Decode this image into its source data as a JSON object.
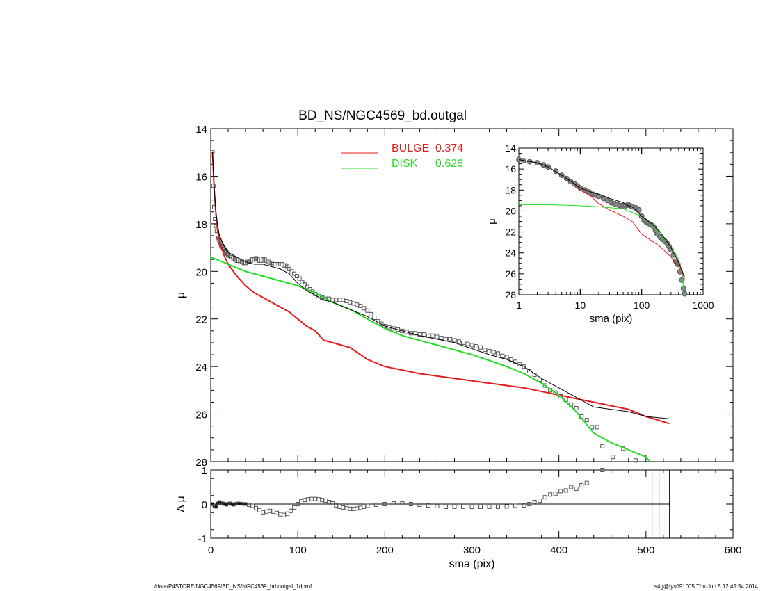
{
  "title": "BD_NS/NGC4569_bd.outgal",
  "footer_left": "/data/P4STORE/NGC4569/BD_NS/NGC4569_bd.outgal_1dprof",
  "footer_right": "s4g@fys091005  Thu Jun  5 12:45:54 2014",
  "colors": {
    "bulge": "#e41a1c",
    "disk": "#22dd22",
    "total": "#000000",
    "data": "#555555"
  },
  "chart_data": [
    {
      "name": "main",
      "type": "line",
      "xlabel": "",
      "ylabel": "μ",
      "xlim": [
        0,
        600
      ],
      "ylim": [
        28,
        14
      ],
      "xticks": [
        0,
        100,
        200,
        300,
        400,
        500,
        600
      ],
      "yticks": [
        14,
        16,
        18,
        20,
        22,
        24,
        26,
        28
      ],
      "legend": [
        {
          "label": "BULGE",
          "value": "0.374",
          "color": "#e41a1c"
        },
        {
          "label": "DISK",
          "value": "0.626",
          "color": "#22dd22"
        }
      ],
      "series": [
        {
          "name": "BULGE",
          "color": "#e41a1c",
          "x": [
            2,
            4,
            6,
            8,
            10,
            15,
            20,
            30,
            40,
            50,
            60,
            70,
            80,
            90,
            100,
            110,
            120,
            130,
            140,
            160,
            180,
            200,
            240,
            280,
            320,
            360,
            400,
            440,
            480,
            500,
            527
          ],
          "y": [
            15.0,
            16.6,
            17.6,
            18.3,
            18.7,
            19.3,
            19.7,
            20.2,
            20.6,
            20.9,
            21.1,
            21.3,
            21.5,
            21.7,
            22.0,
            22.3,
            22.5,
            22.9,
            23.0,
            23.2,
            23.7,
            24.0,
            24.3,
            24.5,
            24.7,
            24.9,
            25.2,
            25.5,
            25.8,
            26.1,
            26.4
          ]
        },
        {
          "name": "DISK",
          "color": "#22dd22",
          "x": [
            0,
            20,
            40,
            60,
            80,
            100,
            120,
            140,
            160,
            180,
            200,
            220,
            260,
            300,
            340,
            360,
            380,
            400,
            420,
            440,
            460,
            480,
            500,
            505
          ],
          "y": [
            19.4,
            19.7,
            20.0,
            20.2,
            20.4,
            20.6,
            20.9,
            21.3,
            21.6,
            22.0,
            22.4,
            22.7,
            23.1,
            23.5,
            24.0,
            24.3,
            24.7,
            25.2,
            25.9,
            26.8,
            27.2,
            27.5,
            27.8,
            28.0
          ]
        },
        {
          "name": "TOTAL",
          "color": "#000000",
          "x": [
            2,
            4,
            6,
            8,
            10,
            15,
            20,
            30,
            40,
            50,
            60,
            70,
            80,
            90,
            100,
            110,
            120,
            130,
            140,
            160,
            180,
            200,
            240,
            280,
            320,
            340,
            360,
            380,
            400,
            420,
            440,
            460,
            480,
            500,
            527
          ],
          "y": [
            15.0,
            16.5,
            17.5,
            18.1,
            18.5,
            18.9,
            19.2,
            19.4,
            19.6,
            19.7,
            19.7,
            19.8,
            19.9,
            20.1,
            20.5,
            20.8,
            21.0,
            21.2,
            21.3,
            21.6,
            21.9,
            22.3,
            22.7,
            23.0,
            23.5,
            23.7,
            24.0,
            24.5,
            24.9,
            25.3,
            25.7,
            25.8,
            25.9,
            26.1,
            26.2
          ]
        }
      ],
      "data_points": {
        "name": "data",
        "x": [
          2,
          3,
          4,
          5,
          6,
          7,
          8,
          9,
          10,
          11,
          12,
          13,
          14,
          15,
          16,
          17,
          18,
          19,
          20,
          22,
          24,
          26,
          28,
          30,
          32,
          34,
          36,
          38,
          40,
          42,
          44,
          46,
          48,
          50,
          52,
          54,
          56,
          58,
          60,
          62,
          64,
          66,
          68,
          70,
          72,
          74,
          76,
          78,
          80,
          82,
          84,
          86,
          88,
          90,
          93,
          96,
          99,
          102,
          105,
          108,
          111,
          114,
          117,
          120,
          124,
          128,
          132,
          136,
          140,
          144,
          148,
          152,
          156,
          160,
          164,
          168,
          172,
          176,
          180,
          184,
          188,
          192,
          196,
          200,
          205,
          210,
          215,
          220,
          225,
          230,
          235,
          240,
          245,
          250,
          255,
          260,
          265,
          270,
          275,
          280,
          285,
          290,
          295,
          300,
          305,
          310,
          315,
          320,
          325,
          330,
          335,
          340,
          345,
          350,
          355,
          360,
          366,
          372,
          378,
          384,
          390,
          396,
          402,
          408,
          414,
          420,
          426,
          432,
          438,
          444,
          450,
          462,
          474,
          488
        ],
        "y": [
          15.0,
          16.4,
          17.3,
          17.8,
          18.1,
          18.3,
          18.5,
          18.6,
          18.7,
          18.8,
          18.9,
          18.95,
          19.0,
          19.05,
          19.1,
          19.15,
          19.2,
          19.25,
          19.3,
          19.35,
          19.4,
          19.45,
          19.5,
          19.55,
          19.55,
          19.6,
          19.6,
          19.65,
          19.65,
          19.6,
          19.6,
          19.55,
          19.5,
          19.5,
          19.45,
          19.5,
          19.55,
          19.55,
          19.5,
          19.5,
          19.55,
          19.6,
          19.65,
          19.65,
          19.7,
          19.7,
          19.7,
          19.7,
          19.7,
          19.7,
          19.75,
          19.75,
          19.8,
          19.9,
          20.0,
          20.1,
          20.2,
          20.3,
          20.45,
          20.55,
          20.65,
          20.75,
          20.85,
          20.95,
          21.05,
          21.1,
          21.15,
          21.15,
          21.2,
          21.2,
          21.2,
          21.2,
          21.25,
          21.3,
          21.35,
          21.4,
          21.45,
          21.55,
          21.65,
          21.8,
          21.95,
          22.1,
          22.2,
          22.3,
          22.35,
          22.4,
          22.45,
          22.5,
          22.55,
          22.6,
          22.6,
          22.65,
          22.65,
          22.7,
          22.7,
          22.75,
          22.8,
          22.85,
          22.85,
          22.9,
          22.95,
          23.0,
          23.05,
          23.1,
          23.15,
          23.2,
          23.3,
          23.35,
          23.4,
          23.45,
          23.55,
          23.6,
          23.7,
          23.8,
          23.9,
          24.0,
          24.2,
          24.35,
          24.55,
          24.8,
          25.0,
          25.1,
          25.25,
          25.4,
          25.6,
          25.75,
          26.1,
          26.25,
          26.55,
          26.55,
          27.35,
          27.8,
          27.45,
          27.95
        ]
      }
    },
    {
      "name": "residuals",
      "type": "scatter",
      "xlabel": "sma (pix)",
      "ylabel": "Δ μ",
      "xlim": [
        0,
        600
      ],
      "ylim": [
        -1,
        1
      ],
      "xticks": [
        0,
        100,
        200,
        300,
        400,
        500,
        600
      ],
      "yticks": [
        -1,
        0,
        1
      ],
      "vlines": [
        507,
        515,
        527
      ],
      "x": [
        2,
        4,
        6,
        8,
        10,
        12,
        14,
        16,
        18,
        20,
        22,
        24,
        26,
        28,
        30,
        32,
        34,
        36,
        38,
        40,
        44,
        48,
        52,
        56,
        60,
        64,
        68,
        72,
        76,
        80,
        84,
        88,
        92,
        96,
        100,
        104,
        108,
        112,
        116,
        120,
        124,
        128,
        132,
        136,
        140,
        144,
        148,
        152,
        156,
        160,
        164,
        168,
        172,
        176,
        180,
        190,
        200,
        210,
        220,
        230,
        240,
        250,
        260,
        270,
        280,
        290,
        300,
        310,
        320,
        330,
        340,
        350,
        360,
        366,
        372,
        378,
        384,
        390,
        396,
        402,
        408,
        414,
        420,
        426,
        432,
        450
      ],
      "y": [
        0.0,
        -0.05,
        -0.08,
        0.02,
        0.06,
        0.03,
        0.02,
        0.0,
        -0.02,
        0.01,
        0.02,
        0.0,
        -0.02,
        0.0,
        0.01,
        0.02,
        0.01,
        0.01,
        0.0,
        0.0,
        -0.02,
        -0.05,
        -0.12,
        -0.18,
        -0.24,
        -0.22,
        -0.2,
        -0.22,
        -0.26,
        -0.3,
        -0.32,
        -0.28,
        -0.2,
        -0.1,
        0.0,
        0.08,
        0.12,
        0.14,
        0.15,
        0.15,
        0.14,
        0.12,
        0.1,
        0.06,
        0.02,
        -0.04,
        -0.08,
        -0.1,
        -0.12,
        -0.14,
        -0.14,
        -0.13,
        -0.11,
        -0.08,
        -0.05,
        -0.02,
        0.0,
        0.02,
        0.02,
        0.0,
        -0.02,
        -0.04,
        -0.06,
        -0.08,
        -0.08,
        -0.08,
        -0.08,
        -0.08,
        -0.08,
        -0.08,
        -0.07,
        -0.05,
        -0.04,
        0.0,
        0.06,
        0.1,
        0.2,
        0.28,
        0.3,
        0.38,
        0.4,
        0.5,
        0.45,
        0.55,
        0.62,
        1.0
      ]
    },
    {
      "name": "inset",
      "type": "line",
      "xlabel": "sma (pix)",
      "ylabel": "μ",
      "xscale": "log",
      "xlim": [
        1,
        1000
      ],
      "ylim": [
        28,
        14
      ],
      "xticks": [
        1,
        10,
        100,
        1000
      ],
      "xtick_labels": [
        "1",
        "10",
        "100",
        "1000"
      ],
      "yticks": [
        14,
        16,
        18,
        20,
        22,
        24,
        26,
        28
      ],
      "series": [
        {
          "name": "BULGE",
          "color": "#e41a1c",
          "x": [
            1,
            2,
            3,
            5,
            8,
            10,
            15,
            20,
            30,
            50,
            70,
            100,
            150,
            200,
            300,
            400,
            500
          ],
          "y": [
            15.1,
            15.4,
            15.8,
            16.6,
            17.4,
            18.0,
            18.6,
            19.3,
            19.9,
            20.5,
            21.0,
            22.2,
            22.9,
            23.4,
            24.4,
            25.2,
            26.5
          ]
        },
        {
          "name": "DISK",
          "color": "#22dd22",
          "x": [
            1,
            3,
            10,
            20,
            50,
            100,
            150,
            200,
            300,
            400,
            450,
            480,
            500
          ],
          "y": [
            19.4,
            19.4,
            19.5,
            19.6,
            19.8,
            20.5,
            21.4,
            22.2,
            23.5,
            24.6,
            25.8,
            27.2,
            28.0
          ]
        },
        {
          "name": "TOTAL",
          "color": "#000000",
          "x": [
            1,
            2,
            3,
            5,
            8,
            10,
            15,
            20,
            30,
            50,
            60,
            70,
            100,
            150,
            200,
            300,
            400,
            500
          ],
          "y": [
            15.1,
            15.4,
            15.8,
            16.6,
            17.4,
            17.8,
            18.2,
            18.4,
            18.8,
            19.2,
            19.5,
            19.6,
            20.5,
            21.3,
            22.0,
            23.5,
            24.9,
            26.3
          ]
        }
      ],
      "data_points": {
        "x": [
          1,
          1.2,
          1.5,
          2,
          2.5,
          3,
          4,
          5,
          6,
          7,
          8,
          9,
          10,
          12,
          14,
          16,
          18,
          20,
          24,
          28,
          32,
          36,
          40,
          45,
          50,
          55,
          60,
          65,
          70,
          80,
          90,
          100,
          110,
          120,
          130,
          140,
          150,
          160,
          170,
          180,
          200,
          220,
          240,
          260,
          280,
          300,
          330,
          360,
          390,
          420,
          450,
          480,
          500
        ],
        "y": [
          15.1,
          15.2,
          15.3,
          15.4,
          15.6,
          15.8,
          16.2,
          16.6,
          16.9,
          17.2,
          17.4,
          17.6,
          17.8,
          18.0,
          18.2,
          18.4,
          18.5,
          18.6,
          18.8,
          19.0,
          19.2,
          19.3,
          19.4,
          19.5,
          19.5,
          19.5,
          19.4,
          19.5,
          19.6,
          19.7,
          19.9,
          20.5,
          20.9,
          21.1,
          21.2,
          21.3,
          21.4,
          21.6,
          21.9,
          22.2,
          22.5,
          22.7,
          22.9,
          23.1,
          23.4,
          23.7,
          24.2,
          24.8,
          25.1,
          25.8,
          26.6,
          27.4,
          27.9
        ]
      }
    }
  ]
}
